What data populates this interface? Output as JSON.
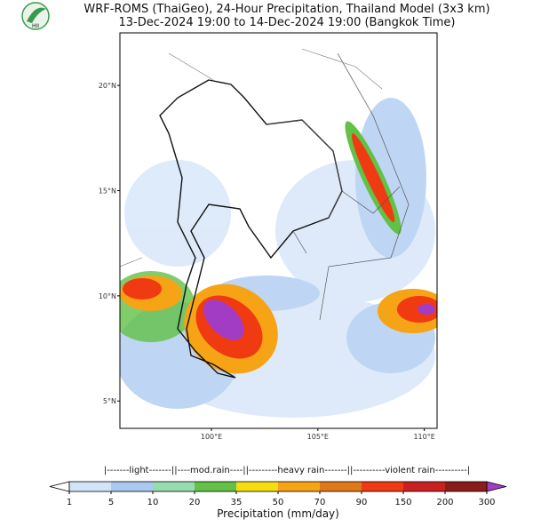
{
  "logo": "HII",
  "title": "WRF-ROMS (ThaiGeo), 24-Hour Precipitation, Thailand Model (3x3 km)",
  "subtitle": "13-Dec-2024 19:00 to 14-Dec-2024 19:00 (Bangkok Time)",
  "map": {
    "lon_range": [
      95.7,
      110.6
    ],
    "lat_range": [
      3.7,
      22.5
    ],
    "lon_ticks": [
      {
        "value": 100,
        "label": "100°E"
      },
      {
        "value": 105,
        "label": "105°E"
      },
      {
        "value": 110,
        "label": "110°E"
      }
    ],
    "lat_ticks": [
      {
        "value": 20,
        "label": "20°N"
      },
      {
        "value": 15,
        "label": "15°N"
      },
      {
        "value": 10,
        "label": "10°N"
      },
      {
        "value": 5,
        "label": "5°N"
      }
    ]
  },
  "colorbar": {
    "categories": "|-------light-------||----mod.rain----||---------heavy rain-------||----------violent rain----------|",
    "ticks": [
      1,
      5,
      10,
      20,
      35,
      50,
      70,
      90,
      150,
      200,
      300
    ],
    "colors": [
      "#d3e4f8",
      "#a9c9f1",
      "#96dcae",
      "#62c146",
      "#f6dd10",
      "#f6a316",
      "#e0781a",
      "#f03a12",
      "#c92121",
      "#8b1c1c"
    ],
    "under_color": "#ffffff",
    "over_color": "#a23cc4",
    "label": "Precipitation (mm/day)"
  }
}
